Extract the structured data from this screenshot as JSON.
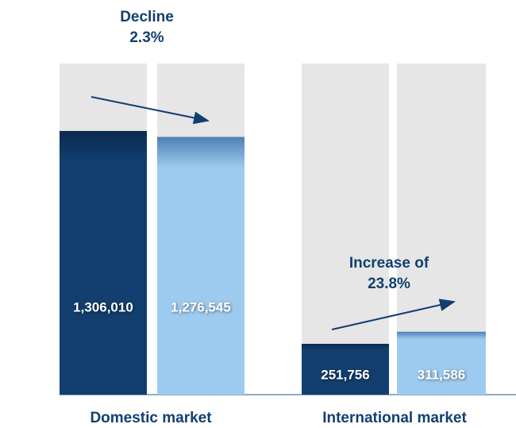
{
  "chart_data": {
    "type": "bar",
    "categories": [
      "Domestic market",
      "International market"
    ],
    "series": [
      {
        "color": "#123f70",
        "values": [
          1306010,
          251756
        ],
        "value_labels": [
          "1,306,010",
          "251,756"
        ]
      },
      {
        "color": "#9dcbef",
        "values": [
          1276545,
          311586
        ],
        "value_labels": [
          "1,276,545",
          "311,586"
        ]
      }
    ],
    "ylim": [
      0,
      1640000
    ],
    "annotations": [
      [
        "Decline",
        "2.3%"
      ],
      [
        "Increase of",
        "23.8%"
      ]
    ]
  }
}
